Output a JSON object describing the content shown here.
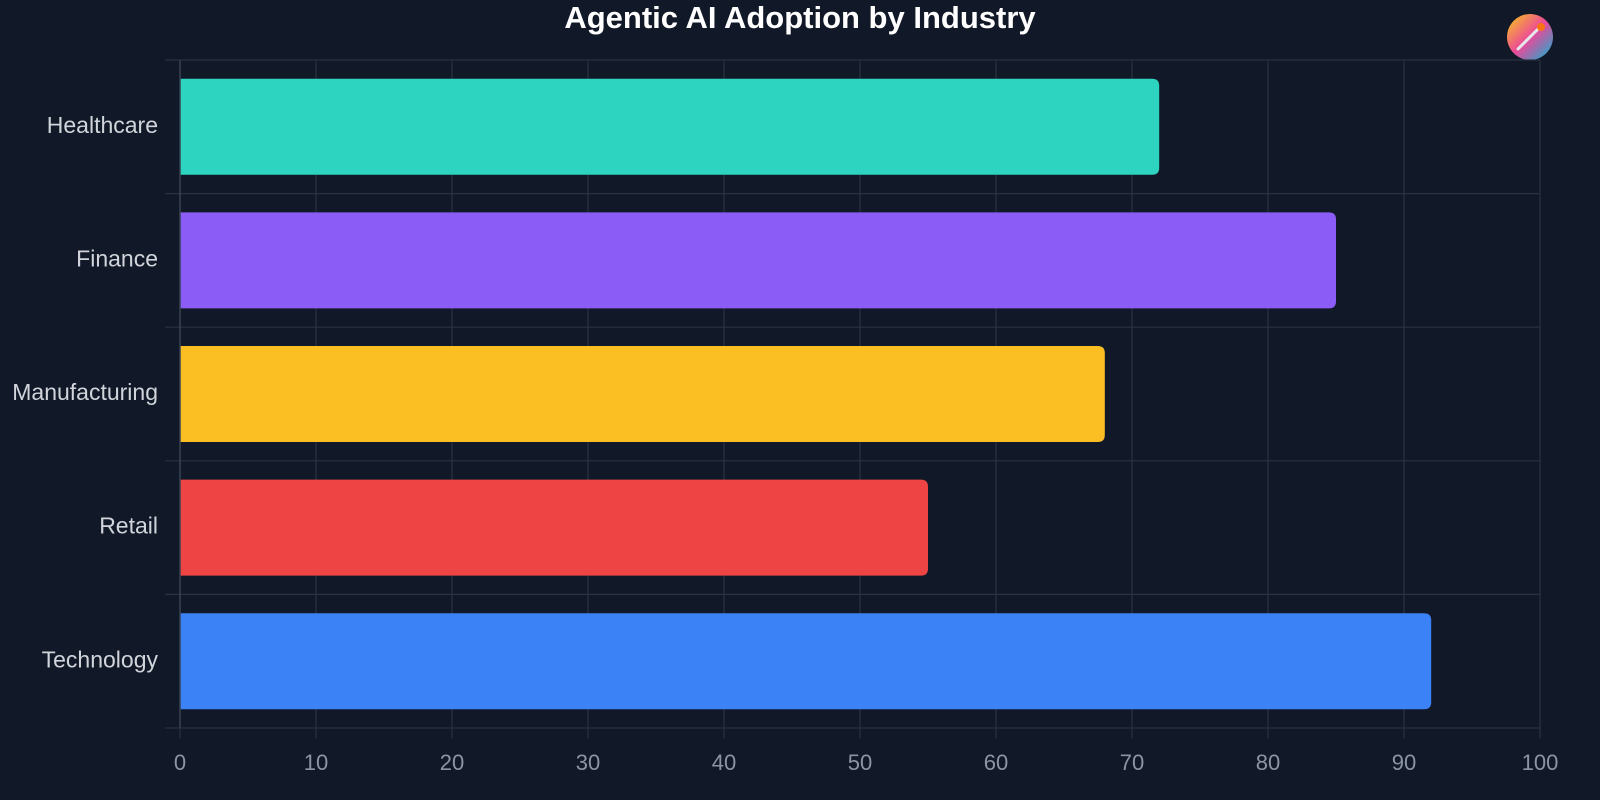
{
  "chart_data": {
    "type": "bar",
    "orientation": "horizontal",
    "title": "Agentic AI Adoption by Industry",
    "categories": [
      "Healthcare",
      "Finance",
      "Manufacturing",
      "Retail",
      "Technology"
    ],
    "values": [
      72,
      85,
      68,
      55,
      92
    ],
    "colors": [
      "#2dd4bf",
      "#8b5cf6",
      "#fbbf24",
      "#ef4444",
      "#3b82f6"
    ],
    "xlim": [
      0,
      100
    ],
    "xticks": [
      0,
      10,
      20,
      30,
      40,
      50,
      60,
      70,
      80,
      90,
      100
    ],
    "grid": true
  }
}
